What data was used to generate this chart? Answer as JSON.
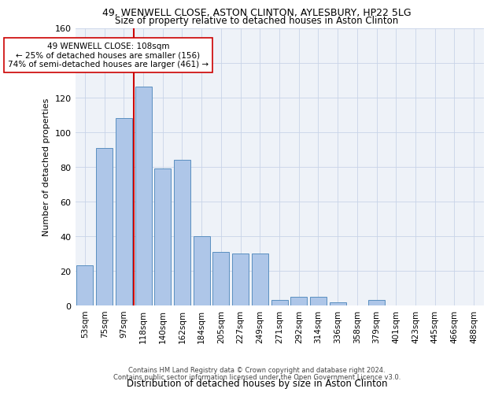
{
  "title_line1": "49, WENWELL CLOSE, ASTON CLINTON, AYLESBURY, HP22 5LG",
  "title_line2": "Size of property relative to detached houses in Aston Clinton",
  "xlabel": "Distribution of detached houses by size in Aston Clinton",
  "ylabel": "Number of detached properties",
  "footer_line1": "Contains HM Land Registry data © Crown copyright and database right 2024.",
  "footer_line2": "Contains public sector information licensed under the Open Government Licence v3.0.",
  "bar_labels": [
    "53sqm",
    "75sqm",
    "97sqm",
    "118sqm",
    "140sqm",
    "162sqm",
    "184sqm",
    "205sqm",
    "227sqm",
    "249sqm",
    "271sqm",
    "292sqm",
    "314sqm",
    "336sqm",
    "358sqm",
    "379sqm",
    "401sqm",
    "423sqm",
    "445sqm",
    "466sqm",
    "488sqm"
  ],
  "bar_values": [
    23,
    91,
    108,
    126,
    79,
    84,
    40,
    31,
    30,
    30,
    3,
    5,
    5,
    2,
    0,
    3,
    0,
    0,
    0,
    0,
    0
  ],
  "bar_color": "#aec6e8",
  "bar_edge_color": "#5a8fc0",
  "grid_color": "#c8d4e8",
  "bg_color": "#eef2f8",
  "vline_color": "#cc0000",
  "annotation_text": "49 WENWELL CLOSE: 108sqm\n← 25% of detached houses are smaller (156)\n74% of semi-detached houses are larger (461) →",
  "annotation_box_color": "#ffffff",
  "annotation_box_edge": "#cc0000",
  "ylim": [
    0,
    160
  ],
  "yticks": [
    0,
    20,
    40,
    60,
    80,
    100,
    120,
    140,
    160
  ],
  "title1_fontsize": 9,
  "title2_fontsize": 8.5,
  "ylabel_fontsize": 8,
  "xlabel_fontsize": 8.5,
  "tick_fontsize": 7.5,
  "footer_fontsize": 6,
  "annot_fontsize": 7.5
}
